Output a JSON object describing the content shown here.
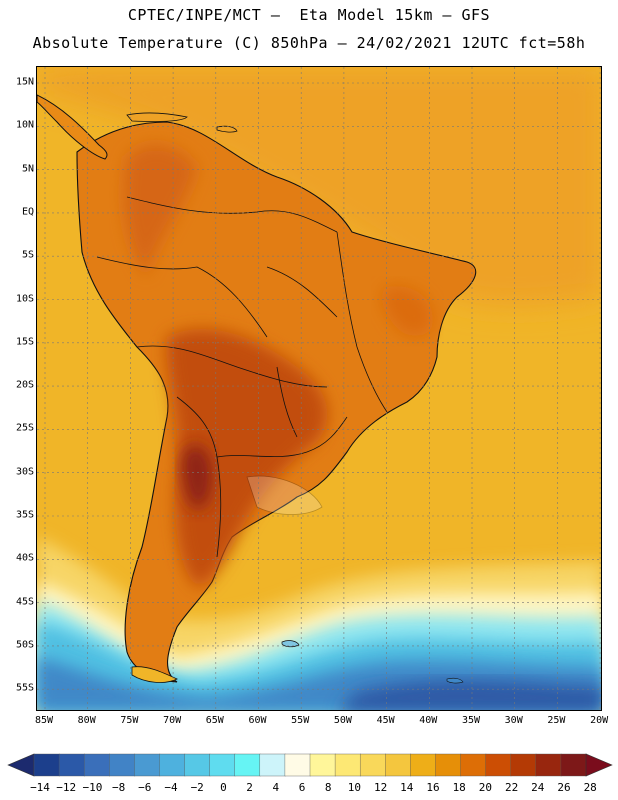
{
  "title": {
    "line1": "CPTEC/INPE/MCT –  Eta Model 15km – GFS",
    "line2": "Absolute Temperature (C) 850hPa – 24/02/2021 12UTC fct=58h"
  },
  "lat_ticks": [
    "15N",
    "10N",
    "5N",
    "EQ",
    "5S",
    "10S",
    "15S",
    "20S",
    "25S",
    "30S",
    "35S",
    "40S",
    "45S",
    "50S",
    "55S"
  ],
  "lon_ticks": [
    "85W",
    "80W",
    "75W",
    "70W",
    "65W",
    "60W",
    "55W",
    "50W",
    "45W",
    "40W",
    "35W",
    "30W",
    "25W",
    "20W"
  ],
  "colorbar": {
    "labels": [
      "−14",
      "−12",
      "−10",
      "−8",
      "−6",
      "−4",
      "−2",
      "0",
      "2",
      "4",
      "6",
      "8",
      "10",
      "12",
      "14",
      "16",
      "18",
      "20",
      "22",
      "24",
      "26",
      "28"
    ],
    "colors": [
      "#1c3f8c",
      "#2b59a8",
      "#3a6fba",
      "#4183c6",
      "#4a9ad2",
      "#4eb1de",
      "#56c8e6",
      "#5fdcef",
      "#66f4f4",
      "#cdf4fa",
      "#fffbe6",
      "#fff69a",
      "#fde874",
      "#f9d85a",
      "#f4c63e",
      "#eeae18",
      "#e68f08",
      "#dd6e06",
      "#cc4e04",
      "#b43a05",
      "#98260e",
      "#7d1818"
    ],
    "low_arrow_color": "#1c2a6e",
    "high_arrow_color": "#7a0c1c"
  }
}
